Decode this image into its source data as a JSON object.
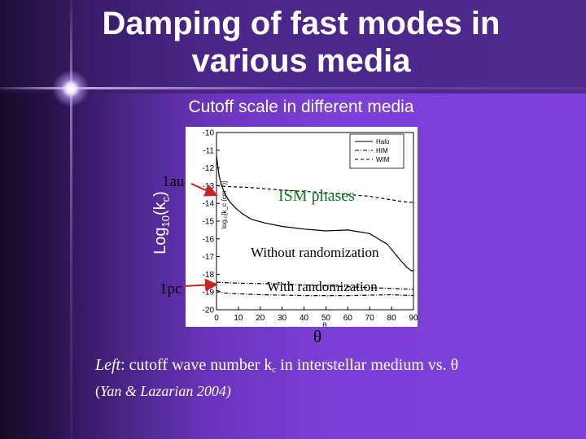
{
  "slide": {
    "title": "Damping of fast modes in various media",
    "title_line1": "Damping of fast modes in",
    "title_line2": "various media",
    "subtitle": "Cutoff scale in different media",
    "ylabel": "Log10(kc)",
    "ylabel_main": "Log",
    "ylabel_sub10": "10",
    "ylabel_paren_open": "(k",
    "ylabel_sub_c": "c",
    "ylabel_paren_close": ")",
    "label_1au": "1au",
    "label_1pc": "1pc",
    "annotation_ism": "ISM phases",
    "annotation_without": "Without randomization",
    "annotation_with": "With randomization",
    "xlabel": "θ",
    "caption_left": "Left",
    "caption_text": ": cutoff wave number k",
    "caption_sub": "c",
    "caption_rest": " in interstellar medium vs. θ",
    "citation_paren": "(",
    "citation": "Yan & Lazarian 2004)"
  },
  "colors": {
    "ism_annotation": "#0f7a22",
    "slide_text": "#ffffff",
    "arrow": "#cc2222"
  },
  "chart_data": {
    "type": "line",
    "xlabel": "θ",
    "ylabel": "log₁₀[k_c (cm⁻¹)]",
    "xlim": [
      0,
      90
    ],
    "ylim": [
      -20,
      -10
    ],
    "x_ticks": [
      0,
      10,
      20,
      30,
      40,
      50,
      60,
      70,
      80,
      90
    ],
    "y_ticks": [
      -10,
      -11,
      -12,
      -13,
      -14,
      -15,
      -16,
      -17,
      -18,
      -19,
      -20
    ],
    "legend": [
      "Halo",
      "HIM",
      "WIM"
    ],
    "legend_position": "top-right",
    "grid": false,
    "series": [
      {
        "name": "Halo",
        "style": "solid",
        "points": [
          [
            0,
            -11.3
          ],
          [
            1,
            -12.3
          ],
          [
            2,
            -12.9
          ],
          [
            4,
            -13.5
          ],
          [
            6,
            -13.9
          ],
          [
            9,
            -14.3
          ],
          [
            12,
            -14.6
          ],
          [
            16,
            -14.9
          ],
          [
            22,
            -15.1
          ],
          [
            30,
            -15.3
          ],
          [
            40,
            -15.45
          ],
          [
            50,
            -15.55
          ],
          [
            60,
            -15.5
          ],
          [
            70,
            -15.7
          ],
          [
            78,
            -16.3
          ],
          [
            84,
            -17.2
          ],
          [
            87,
            -17.6
          ],
          [
            89,
            -17.8
          ],
          [
            90,
            -17.8
          ]
        ]
      },
      {
        "name": "HIM",
        "style": "dash-dot",
        "points": [
          [
            0,
            -18.9
          ],
          [
            3,
            -19.05
          ],
          [
            10,
            -19.1
          ],
          [
            20,
            -19.15
          ],
          [
            40,
            -19.2
          ],
          [
            60,
            -19.2
          ],
          [
            80,
            -19.15
          ],
          [
            90,
            -19.2
          ]
        ]
      },
      {
        "name": "WIM",
        "style": "dashed",
        "points": [
          [
            0,
            -13.0
          ],
          [
            5,
            -13.05
          ],
          [
            15,
            -13.1
          ],
          [
            30,
            -13.25
          ],
          [
            50,
            -13.4
          ],
          [
            70,
            -13.6
          ],
          [
            85,
            -13.9
          ],
          [
            90,
            -13.95
          ]
        ]
      },
      {
        "name": "",
        "style": "dash-dot",
        "points": [
          [
            0,
            -18.45
          ],
          [
            10,
            -18.5
          ],
          [
            30,
            -18.55
          ],
          [
            50,
            -18.65
          ],
          [
            70,
            -18.75
          ],
          [
            90,
            -18.85
          ]
        ]
      }
    ]
  }
}
